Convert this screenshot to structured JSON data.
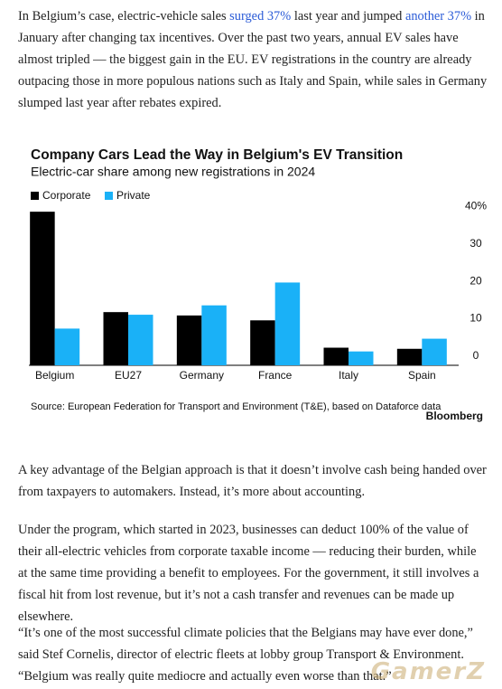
{
  "article": {
    "paragraph_1": [
      "In Belgium’s case, electric-vehicle sales ",
      "surged 37%",
      " last year and jumped ",
      "another 37%",
      " in January after changing tax incentives. Over the past two years, annual EV sales have almost tripled — the biggest gain in the EU. EV registrations in the country are already outpacing those in more populous nations such as Italy and Spain, while sales in Germany slumped last year after rebates expired."
    ],
    "paragraph_2": "A key advantage of the Belgian approach is that it doesn’t involve cash being handed over from taxpayers to automakers. Instead, it’s more about accounting.",
    "paragraph_3": "Under the program, which started in 2023, businesses can deduct 100% of the value of their all-electric vehicles from corporate taxable income — reducing their burden, while at the same time providing a benefit to employees. For the government, it still involves a fiscal hit from lost revenue, but it’s not a cash transfer and revenues can be made up elsewhere.",
    "paragraph_4": "“It’s one of the most successful climate policies that the Belgians may have ever done,” said Stef Cornelis, director of electric fleets at lobby group Transport & Environment. “Belgium was really quite mediocre and actually even worse than that.”",
    "watermark": "GamerZ"
  },
  "chart_data": {
    "type": "bar",
    "title": "Company Cars Lead the Way in Belgium's EV Transition",
    "subtitle": "Electric-car share among new registrations in 2024",
    "categories": [
      "Belgium",
      "EU27",
      "Germany",
      "France",
      "Italy",
      "Spain"
    ],
    "series": [
      {
        "name": "Corporate",
        "color": "#000000",
        "values": [
          41,
          14.2,
          13.3,
          12,
          4.7,
          4.4
        ]
      },
      {
        "name": "Private",
        "color": "#1ab1f7",
        "values": [
          9.8,
          13.5,
          16,
          22.1,
          3.7,
          7.1
        ]
      }
    ],
    "ylim": [
      0,
      42
    ],
    "yticks": [
      0,
      10,
      20,
      30,
      {
        "value": 40,
        "label": "40%"
      }
    ],
    "grid": false,
    "source": "Source: European Federation for Transport and Environment (T&E), based on Dataforce data",
    "logo": "Bloomberg"
  }
}
